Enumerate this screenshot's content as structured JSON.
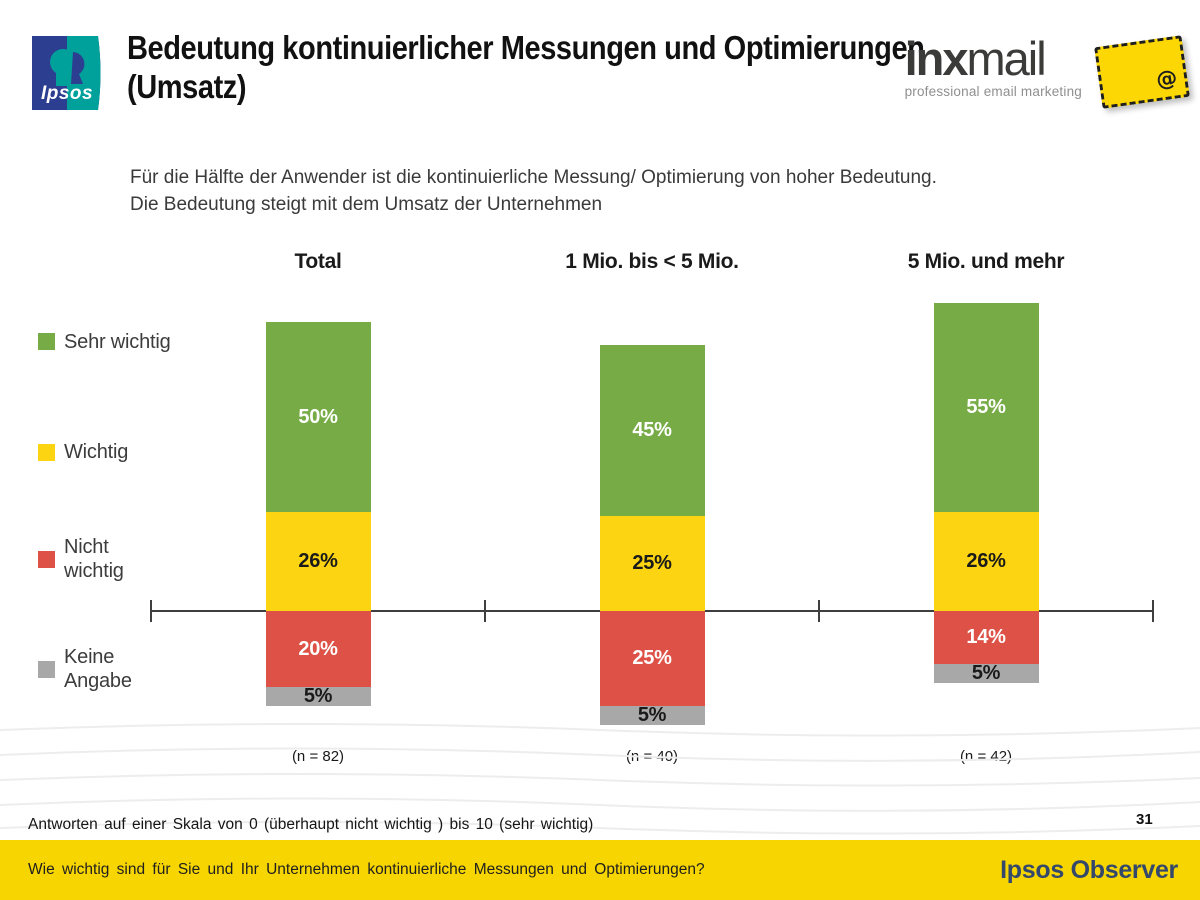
{
  "header": {
    "title_line1": "Bedeutung kontinuierlicher Messungen und Optimierungen",
    "title_line2": "(Umsatz)",
    "ipsos_logo_text": "Ipsos",
    "inxmail": {
      "name_bold": "inx",
      "name_light": "mail",
      "tagline": "professional email marketing",
      "at_symbol": "@"
    }
  },
  "subtitle": {
    "line1": "Für die Hälfte der Anwender ist die kontinuierliche Messung/ Optimierung von hoher Bedeutung.",
    "line2": "Die Bedeutung steigt mit dem Umsatz der Unternehmen"
  },
  "chart_data": {
    "type": "bar",
    "stacked": true,
    "categories": [
      "Total",
      "1 Mio. bis < 5 Mio.",
      "5 Mio. und mehr"
    ],
    "sample_sizes": [
      "(n = 82)",
      "(n = 40)",
      "(n = 42)"
    ],
    "series": [
      {
        "name": "Sehr wichtig",
        "color": "#76AB45",
        "text_color": "#ffffff",
        "values": [
          50,
          45,
          55
        ]
      },
      {
        "name": "Wichtig",
        "color": "#FCD411",
        "text_color": "#1a1a1a",
        "values": [
          26,
          25,
          26
        ]
      },
      {
        "name": "Nicht wichtig",
        "color": "#DD5146",
        "text_color": "#ffffff",
        "values": [
          20,
          25,
          14
        ]
      },
      {
        "name": "Keine Angabe",
        "color": "#A8A8A8",
        "text_color": "#1a1a1a",
        "values": [
          5,
          5,
          5
        ]
      }
    ],
    "value_suffix": "%",
    "baseline_note": "horizontal axis drawn between 'Wichtig' and 'Nicht wichtig' segments",
    "legend_position": "left",
    "grid": false
  },
  "legend": {
    "items": [
      {
        "lines": [
          "Sehr wichtig"
        ],
        "color": "#76AB45"
      },
      {
        "lines": [
          "Wichtig"
        ],
        "color": "#FCD411"
      },
      {
        "lines": [
          "Nicht",
          "wichtig"
        ],
        "color": "#DD5146"
      },
      {
        "lines": [
          "Keine",
          "Angabe"
        ],
        "color": "#A8A8A8"
      }
    ]
  },
  "footnote": "Antworten auf einer Skala von 0 (überhaupt nicht wichtig ) bis 10 (sehr wichtig)",
  "page_number": "31",
  "footer": {
    "question": "Wie wichtig sind für Sie und Ihr Unternehmen kontinuierliche Messungen und Optimierungen?",
    "brand": "Ipsos Observer"
  }
}
